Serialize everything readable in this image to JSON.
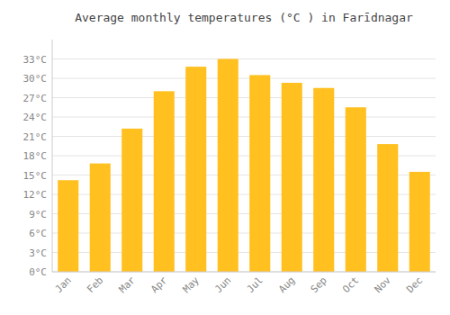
{
  "chart_data": {
    "type": "bar",
    "title": "Average monthly temperatures (°C ) in Farīdnagar",
    "categories": [
      "Jan",
      "Feb",
      "Mar",
      "Apr",
      "May",
      "Jun",
      "Jul",
      "Aug",
      "Sep",
      "Oct",
      "Nov",
      "Dec"
    ],
    "values": [
      14.2,
      16.8,
      22.2,
      28.0,
      31.8,
      33.0,
      30.5,
      29.3,
      28.5,
      25.5,
      19.8,
      15.5
    ],
    "color": "#FFC020",
    "ylim": [
      0,
      36
    ],
    "yticks": [
      {
        "value": 0,
        "label": "0°C"
      },
      {
        "value": 3,
        "label": "3°C"
      },
      {
        "value": 6,
        "label": "6°C"
      },
      {
        "value": 9,
        "label": "9°C"
      },
      {
        "value": 12,
        "label": "12°C"
      },
      {
        "value": 15,
        "label": "15°C"
      },
      {
        "value": 18,
        "label": "18°C"
      },
      {
        "value": 21,
        "label": "21°C"
      },
      {
        "value": 24,
        "label": "24°C"
      },
      {
        "value": 27,
        "label": "27°C"
      },
      {
        "value": 30,
        "label": "30°C"
      },
      {
        "value": 33,
        "label": "33°C"
      }
    ],
    "grid": true
  }
}
